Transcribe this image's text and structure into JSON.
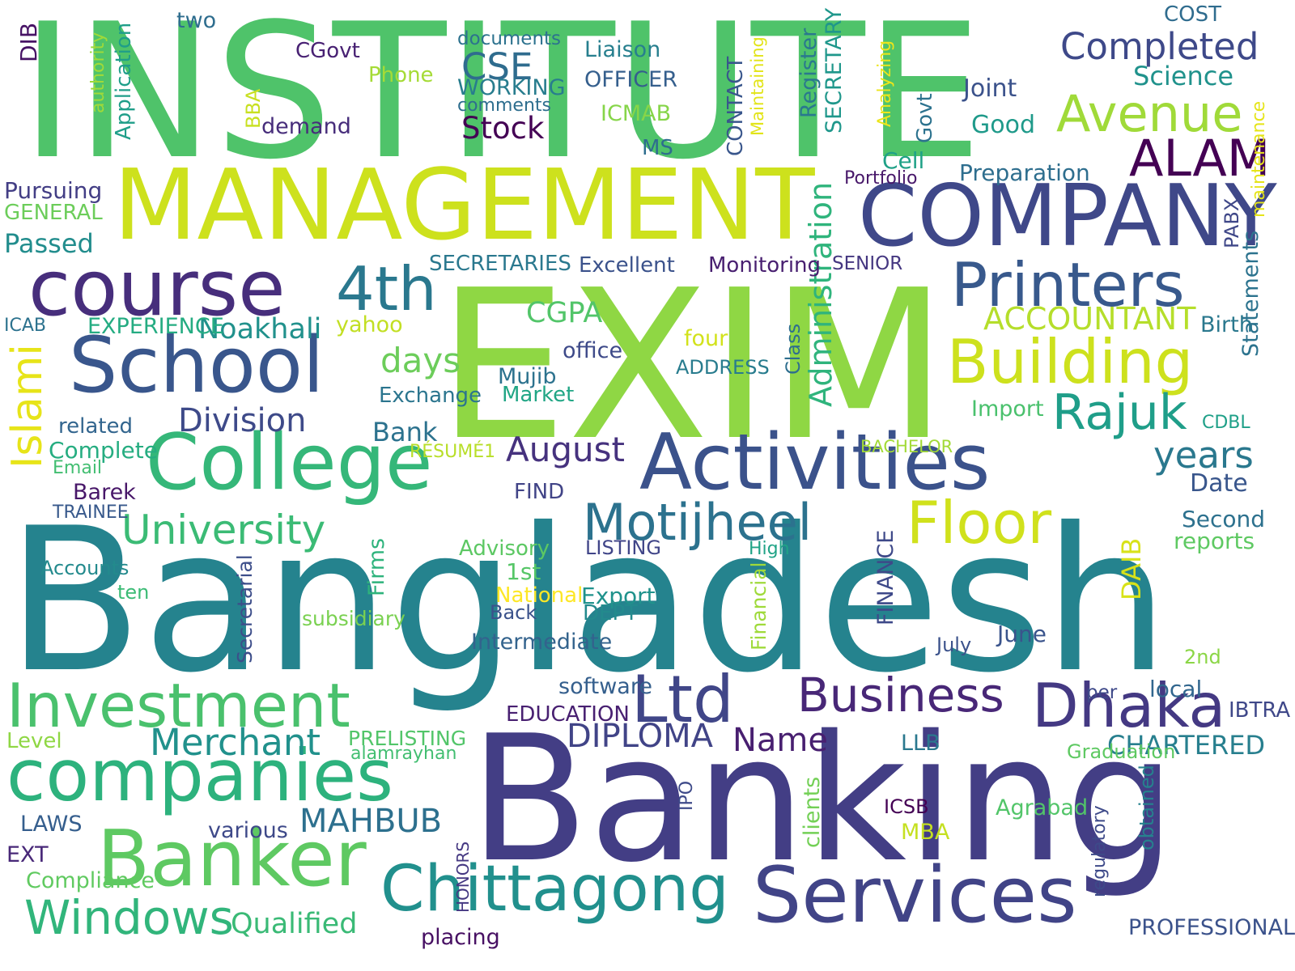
{
  "words": [
    {
      "text": "INSTITUTE",
      "color": "#4fc36a"
    },
    {
      "text": "EXIM",
      "color": "#8fd744"
    },
    {
      "text": "Bangladesh",
      "color": "#25838e"
    },
    {
      "text": "Banking",
      "color": "#433e85"
    },
    {
      "text": "MANAGEMENT",
      "color": "#cde11d"
    },
    {
      "text": "COMPANY",
      "color": "#3f4889"
    },
    {
      "text": "course",
      "color": "#472e7c"
    },
    {
      "text": "School",
      "color": "#39568c"
    },
    {
      "text": "College",
      "color": "#35b779"
    },
    {
      "text": "Activities",
      "color": "#3b528b"
    },
    {
      "text": "Printers",
      "color": "#38598c"
    },
    {
      "text": "Building",
      "color": "#cde11d"
    },
    {
      "text": "Banker",
      "color": "#5ec962"
    },
    {
      "text": "companies",
      "color": "#2db27d"
    },
    {
      "text": "Investment",
      "color": "#4ac16d"
    },
    {
      "text": "Chittagong",
      "color": "#21908d"
    },
    {
      "text": "Services",
      "color": "#414487"
    },
    {
      "text": "Motijheel",
      "color": "#2c728e"
    },
    {
      "text": "Floor",
      "color": "#d0e11c"
    },
    {
      "text": "Dhaka",
      "color": "#443983"
    },
    {
      "text": "Ltd",
      "color": "#404688"
    },
    {
      "text": "4th",
      "color": "#2a788e"
    },
    {
      "text": "ALAM",
      "color": "#440154"
    },
    {
      "text": "Avenue",
      "color": "#a0da39"
    },
    {
      "text": "Completed",
      "color": "#3e4989"
    },
    {
      "text": "Rajuk",
      "color": "#1f9e89"
    },
    {
      "text": "Windows",
      "color": "#31b57b"
    },
    {
      "text": "Business",
      "color": "#482777"
    },
    {
      "text": "August",
      "color": "#46327e"
    },
    {
      "text": "years",
      "color": "#2a788e"
    },
    {
      "text": "University",
      "color": "#3bbb75"
    },
    {
      "text": "Division",
      "color": "#3e4a89"
    },
    {
      "text": "Islami",
      "color": "#e7e419"
    },
    {
      "text": "Merchant",
      "color": "#21918c"
    },
    {
      "text": "DIPLOMA",
      "color": "#414487"
    },
    {
      "text": "Name",
      "color": "#481f70"
    },
    {
      "text": "MAHBUB",
      "color": "#2d708e"
    },
    {
      "text": "Qualified",
      "color": "#3aba76"
    },
    {
      "text": "CSE",
      "color": "#2f6c8e"
    },
    {
      "text": "Stock",
      "color": "#440154"
    },
    {
      "text": "Science",
      "color": "#20928c"
    },
    {
      "text": "Noakhali",
      "color": "#21918c"
    },
    {
      "text": "CGPA",
      "color": "#52c569"
    },
    {
      "text": "days",
      "color": "#6ccd5a"
    },
    {
      "text": "ACCOUNTANT",
      "color": "#b5de2b"
    },
    {
      "text": "Administration",
      "color": "#2fb47c"
    },
    {
      "text": "Passed",
      "color": "#228d8d"
    },
    {
      "text": "Pursuing",
      "color": "#433e85"
    },
    {
      "text": "GENERAL",
      "color": "#6ccd5a"
    },
    {
      "text": "Bank",
      "color": "#2c728e"
    },
    {
      "text": "CHARTERED",
      "color": "#277f8e"
    },
    {
      "text": "Second",
      "color": "#2d718e"
    },
    {
      "text": "reports",
      "color": "#5ec962"
    },
    {
      "text": "Date",
      "color": "#39568c"
    },
    {
      "text": "Birth",
      "color": "#2a788e"
    },
    {
      "text": "Statements",
      "color": "#2c738e"
    },
    {
      "text": "Joint",
      "color": "#3b528b"
    },
    {
      "text": "Good",
      "color": "#1f9a8a"
    },
    {
      "text": "Preparation",
      "color": "#2e6e8e"
    },
    {
      "text": "Cell",
      "color": "#1fa187"
    },
    {
      "text": "Portfolio",
      "color": "#48186a"
    },
    {
      "text": "PABX",
      "color": "#3f4788"
    },
    {
      "text": "maintenance",
      "color": "#e5e419"
    },
    {
      "text": "COST",
      "color": "#2f6c8e"
    },
    {
      "text": "two",
      "color": "#2e6d8e"
    },
    {
      "text": "documents",
      "color": "#2c728e"
    },
    {
      "text": "Liaison",
      "color": "#277f8e"
    },
    {
      "text": "OFFICER",
      "color": "#355f8d"
    },
    {
      "text": "WORKING",
      "color": "#287d8e"
    },
    {
      "text": "comments",
      "color": "#2e6e8e"
    },
    {
      "text": "CGovt",
      "color": "#482173"
    },
    {
      "text": "Phone",
      "color": "#a5db36"
    },
    {
      "text": "ICMAB",
      "color": "#86d549"
    },
    {
      "text": "demand",
      "color": "#472d7b"
    },
    {
      "text": "BBA",
      "color": "#c8e020"
    },
    {
      "text": "MS",
      "color": "#2e6d8e"
    },
    {
      "text": "DIB",
      "color": "#471365"
    },
    {
      "text": "authority",
      "color": "#a0da39"
    },
    {
      "text": "Application",
      "color": "#1f9e89"
    },
    {
      "text": "Register",
      "color": "#2a788e"
    },
    {
      "text": "SECRETARY",
      "color": "#1f978b"
    },
    {
      "text": "CONTACT",
      "color": "#39568c"
    },
    {
      "text": "Maintaining",
      "color": "#e2e418"
    },
    {
      "text": "Analyzing",
      "color": "#ece51b"
    },
    {
      "text": "Govt",
      "color": "#2c728e"
    },
    {
      "text": "SECRETARIES",
      "color": "#2a788e"
    },
    {
      "text": "Excellent",
      "color": "#3b528b"
    },
    {
      "text": "Monitoring",
      "color": "#481f70"
    },
    {
      "text": "SENIOR",
      "color": "#453781"
    },
    {
      "text": "ICAB",
      "color": "#2c728e"
    },
    {
      "text": "EXPERIENCE",
      "color": "#25ac82"
    },
    {
      "text": "yahoo",
      "color": "#c2df23"
    },
    {
      "text": "four",
      "color": "#d2e21b"
    },
    {
      "text": "office",
      "color": "#3e4a89"
    },
    {
      "text": "ADDRESS",
      "color": "#287c8e"
    },
    {
      "text": "Mujib",
      "color": "#2c728e"
    },
    {
      "text": "Market",
      "color": "#21a685"
    },
    {
      "text": "Exchange",
      "color": "#2b758e"
    },
    {
      "text": "Class",
      "color": "#2e6e8e"
    },
    {
      "text": "Import",
      "color": "#4ac16d"
    },
    {
      "text": "CDBL",
      "color": "#1fa088"
    },
    {
      "text": "BACHELOR",
      "color": "#a2da37"
    },
    {
      "text": "related",
      "color": "#32658e"
    },
    {
      "text": "Complete",
      "color": "#26ad81"
    },
    {
      "text": "Email",
      "color": "#42be71"
    },
    {
      "text": "Barek",
      "color": "#481769"
    },
    {
      "text": "TRAINEE",
      "color": "#38598c"
    },
    {
      "text": "RÉSUMÉ1",
      "color": "#b8de29"
    },
    {
      "text": "FIND",
      "color": "#414487"
    },
    {
      "text": "Advisory",
      "color": "#5cc863"
    },
    {
      "text": "LISTING",
      "color": "#404588"
    },
    {
      "text": "High",
      "color": "#20a386"
    },
    {
      "text": "1st",
      "color": "#56c667"
    },
    {
      "text": "National",
      "color": "#fde725"
    },
    {
      "text": "Export",
      "color": "#20928c"
    },
    {
      "text": "Back",
      "color": "#3b528b"
    },
    {
      "text": "DEPT",
      "color": "#238a8d"
    },
    {
      "text": "Accounts",
      "color": "#238a8d"
    },
    {
      "text": "ten",
      "color": "#3bbb75"
    },
    {
      "text": "subsidiary",
      "color": "#7ad151"
    },
    {
      "text": "Secretarial",
      "color": "#3d4e8a"
    },
    {
      "text": "Firms",
      "color": "#2eb37c"
    },
    {
      "text": "Intermediate",
      "color": "#33638d"
    },
    {
      "text": "Financial",
      "color": "#9fda3a"
    },
    {
      "text": "FINANCE",
      "color": "#3e4989"
    },
    {
      "text": "DAIB",
      "color": "#d8e219"
    },
    {
      "text": "June",
      "color": "#3a548c"
    },
    {
      "text": "July",
      "color": "#3b528b"
    },
    {
      "text": "2nd",
      "color": "#8bd646"
    },
    {
      "text": "local",
      "color": "#31668e"
    },
    {
      "text": "per",
      "color": "#3e4989"
    },
    {
      "text": "IBTRA",
      "color": "#3f4889"
    },
    {
      "text": "software",
      "color": "#355f8d"
    },
    {
      "text": "EDUCATION",
      "color": "#482071"
    },
    {
      "text": "PRELISTING",
      "color": "#52c569"
    },
    {
      "text": "alamrayhan",
      "color": "#42be71"
    },
    {
      "text": "Level",
      "color": "#8fd744"
    },
    {
      "text": "LLB",
      "color": "#2a788e"
    },
    {
      "text": "Graduation",
      "color": "#5ec962"
    },
    {
      "text": "LAWS",
      "color": "#355e8d"
    },
    {
      "text": "various",
      "color": "#3e4989"
    },
    {
      "text": "EXT",
      "color": "#482878"
    },
    {
      "text": "Compliance",
      "color": "#60ca60"
    },
    {
      "text": "IPO",
      "color": "#3e4a89"
    },
    {
      "text": "HONORS",
      "color": "#453882"
    },
    {
      "text": "clients",
      "color": "#73d056"
    },
    {
      "text": "ICSB",
      "color": "#440154"
    },
    {
      "text": "MBA",
      "color": "#c5e021"
    },
    {
      "text": "Agrabad",
      "color": "#52c569"
    },
    {
      "text": "regulatory",
      "color": "#3e4a89"
    },
    {
      "text": "obtained",
      "color": "#26828e"
    },
    {
      "text": "PROFESSIONAL",
      "color": "#3b528b"
    },
    {
      "text": "placing",
      "color": "#471063"
    }
  ]
}
